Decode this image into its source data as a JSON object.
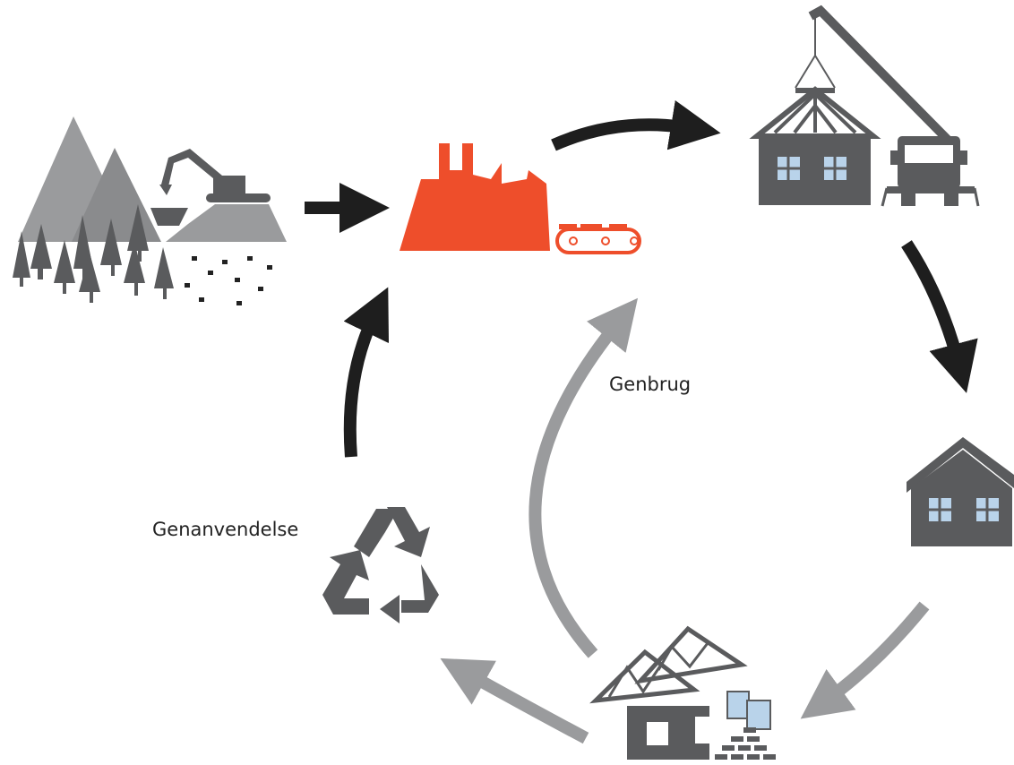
{
  "labels": {
    "genbrug": "Genbrug",
    "genanvendelse": "Genanvendelse"
  }
}
